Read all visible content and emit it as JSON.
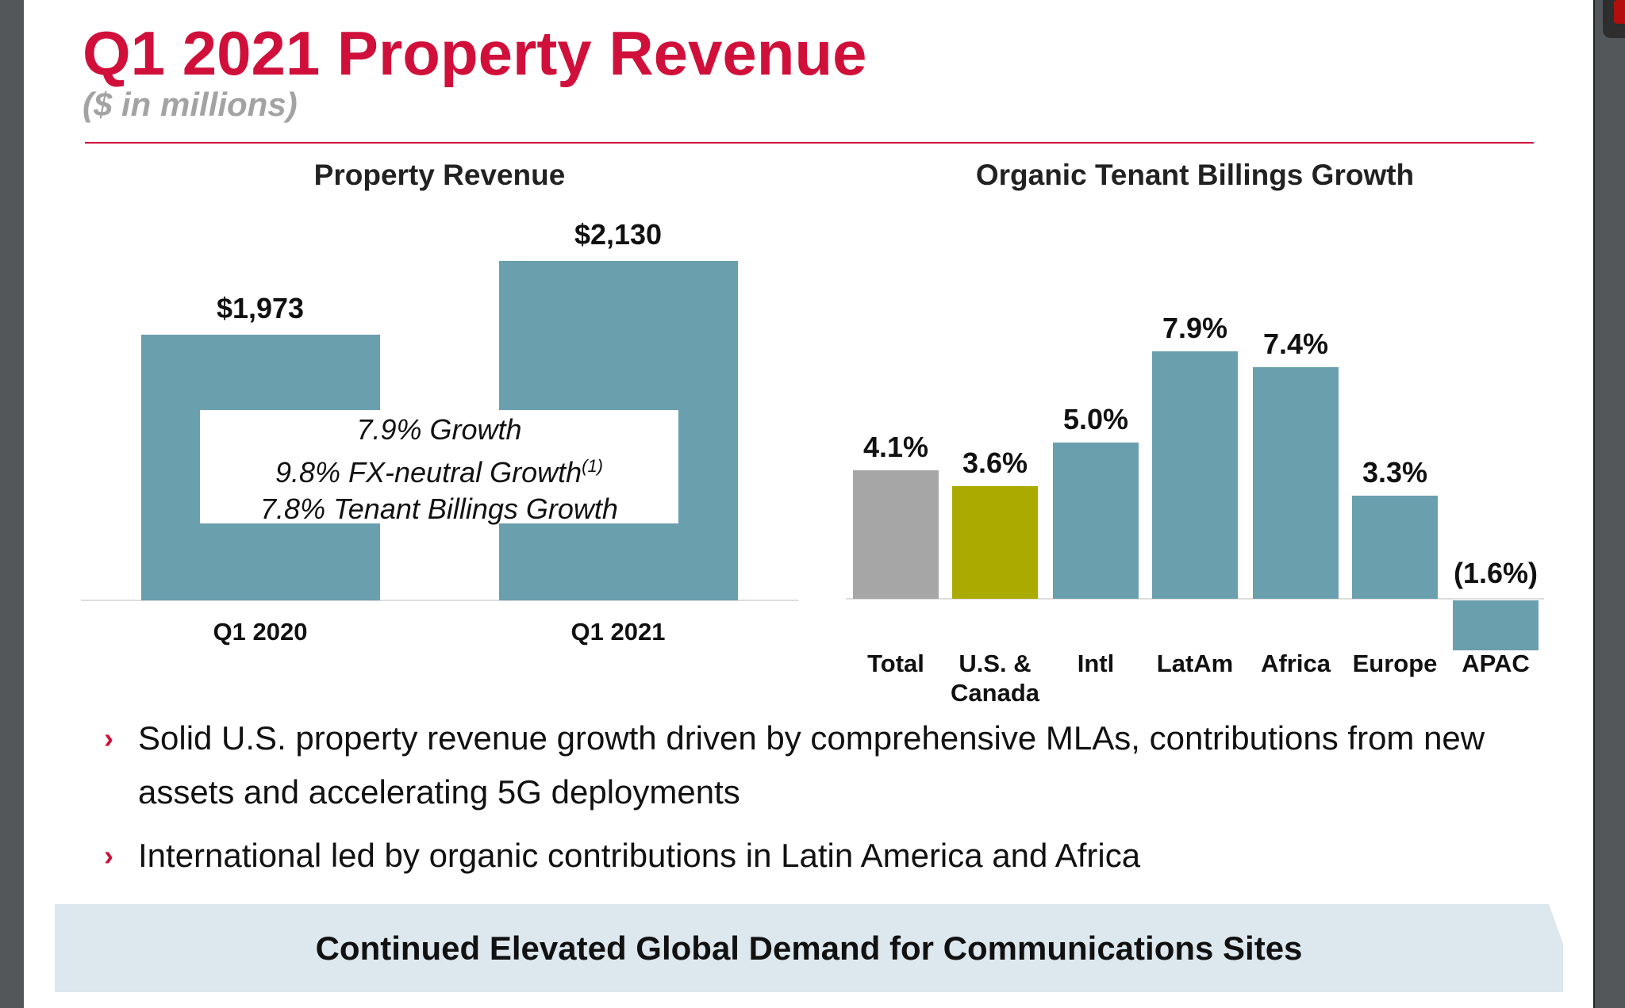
{
  "header": {
    "title": "Q1 2021 Property Revenue",
    "subtitle": "($ in millions)"
  },
  "chart_data": [
    {
      "type": "bar",
      "title": "Property Revenue",
      "categories": [
        "Q1 2020",
        "Q1 2021"
      ],
      "values": [
        1973,
        2130
      ],
      "data_labels": [
        "$1,973",
        "$2,130"
      ],
      "annotation": {
        "line1": "7.9% Growth",
        "line2": "9.8% FX-neutral Growth",
        "line2_sup": "(1)",
        "line3": "7.8% Tenant Billings Growth"
      },
      "color": "#6a9fae"
    },
    {
      "type": "bar",
      "title": "Organic Tenant Billings Growth",
      "categories": [
        "Total",
        "U.S. & Canada",
        "Intl",
        "LatAm",
        "Africa",
        "Europe",
        "APAC"
      ],
      "values": [
        4.1,
        3.6,
        5.0,
        7.9,
        7.4,
        3.3,
        -1.6
      ],
      "data_labels": [
        "4.1%",
        "3.6%",
        "5.0%",
        "7.9%",
        "7.4%",
        "3.3%",
        "(1.6%)"
      ],
      "category_lines": [
        [
          "Total"
        ],
        [
          "U.S. &",
          "Canada"
        ],
        [
          "Intl"
        ],
        [
          "LatAm"
        ],
        [
          "Africa"
        ],
        [
          "Europe"
        ],
        [
          "APAC"
        ]
      ],
      "colors": [
        "#a6a6a6",
        "#aaab00",
        "#6a9fae",
        "#6a9fae",
        "#6a9fae",
        "#6a9fae",
        "#6a9fae"
      ]
    }
  ],
  "bullets": [
    "Solid U.S. property revenue growth driven by comprehensive MLAs, contributions from new assets and accelerating 5G deployments",
    "International led by organic contributions in Latin America and Africa"
  ],
  "banner": "Continued Elevated Global Demand for Communications Sites",
  "colors": {
    "accent": "#d0103a",
    "banner_bg": "#dde7ee"
  }
}
